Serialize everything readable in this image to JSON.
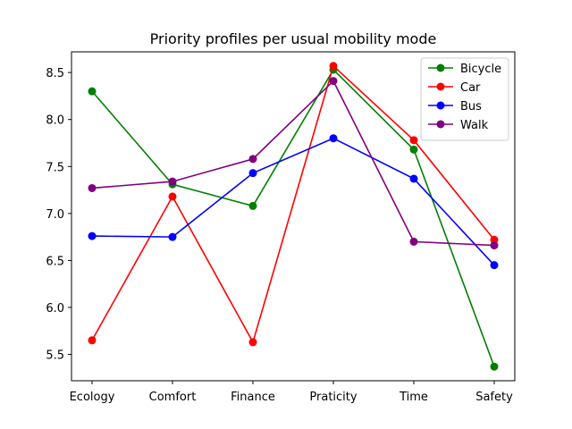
{
  "chart_data": {
    "type": "line",
    "title": "Priority profiles per usual mobility mode",
    "xlabel": "",
    "ylabel": "",
    "categories": [
      "Ecology",
      "Comfort",
      "Finance",
      "Praticity",
      "Time",
      "Safety"
    ],
    "ylim": [
      5.22,
      8.72
    ],
    "yticks": [
      5.5,
      6.0,
      6.5,
      7.0,
      7.5,
      8.0,
      8.5
    ],
    "ytick_labels": [
      "5.5",
      "6.0",
      "6.5",
      "7.0",
      "7.5",
      "8.0",
      "8.5"
    ],
    "grid": false,
    "legend_position": "top-right",
    "series": [
      {
        "name": "Bicycle",
        "color": "#008000",
        "values": [
          8.3,
          7.31,
          7.08,
          8.53,
          7.68,
          5.37
        ]
      },
      {
        "name": "Car",
        "color": "#ff0000",
        "values": [
          5.65,
          7.18,
          5.63,
          8.57,
          7.78,
          6.72
        ]
      },
      {
        "name": "Bus",
        "color": "#0000ff",
        "values": [
          6.76,
          6.75,
          7.43,
          7.8,
          7.37,
          6.45
        ]
      },
      {
        "name": "Walk",
        "color": "#800080",
        "values": [
          7.27,
          7.34,
          7.58,
          8.41,
          6.7,
          6.66
        ]
      }
    ]
  }
}
